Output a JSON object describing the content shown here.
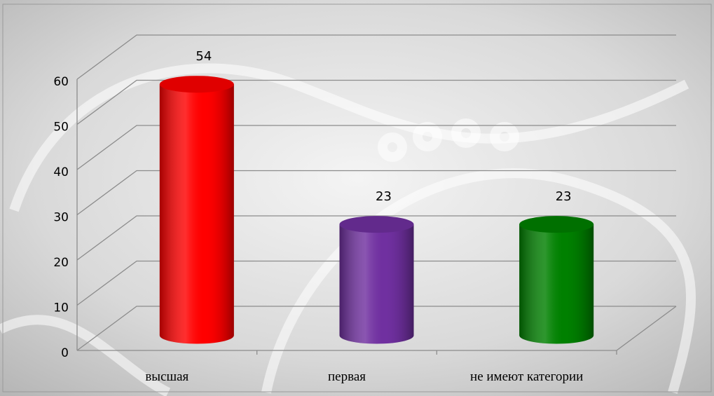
{
  "chart_data": {
    "type": "bar3d",
    "categories": [
      "высшая",
      "первая",
      "не имеют категории"
    ],
    "values": [
      54,
      23,
      23
    ],
    "colors": [
      "#ff0000",
      "#7030a0",
      "#008000"
    ],
    "ylim": [
      0,
      60
    ],
    "yticks": [
      0,
      10,
      20,
      30,
      40,
      50,
      60
    ],
    "grid": true
  }
}
